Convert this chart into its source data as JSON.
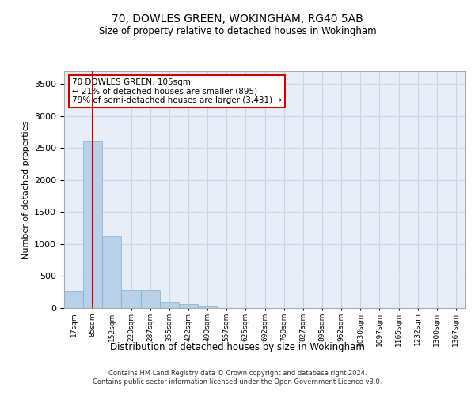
{
  "title_line1": "70, DOWLES GREEN, WOKINGHAM, RG40 5AB",
  "title_line2": "Size of property relative to detached houses in Wokingham",
  "xlabel": "Distribution of detached houses by size in Wokingham",
  "ylabel": "Number of detached properties",
  "footer_line1": "Contains HM Land Registry data © Crown copyright and database right 2024.",
  "footer_line2": "Contains public sector information licensed under the Open Government Licence v3.0.",
  "bar_color": "#b8d0e8",
  "bar_edge_color": "#7aafd4",
  "grid_color": "#c8d4e8",
  "background_color": "#e8eef8",
  "annotation_box_text": "70 DOWLES GREEN: 105sqm\n← 21% of detached houses are smaller (895)\n79% of semi-detached houses are larger (3,431) →",
  "vline_x_index": 1,
  "vline_color": "#cc0000",
  "categories": [
    "17sqm",
    "85sqm",
    "152sqm",
    "220sqm",
    "287sqm",
    "355sqm",
    "422sqm",
    "490sqm",
    "557sqm",
    "625sqm",
    "692sqm",
    "760sqm",
    "827sqm",
    "895sqm",
    "962sqm",
    "1030sqm",
    "1097sqm",
    "1165sqm",
    "1232sqm",
    "1300sqm",
    "1367sqm"
  ],
  "values": [
    270,
    2600,
    1120,
    280,
    280,
    100,
    60,
    40,
    0,
    0,
    0,
    0,
    0,
    0,
    0,
    0,
    0,
    0,
    0,
    0,
    0
  ],
  "ylim": [
    0,
    3700
  ],
  "yticks": [
    0,
    500,
    1000,
    1500,
    2000,
    2500,
    3000,
    3500
  ]
}
